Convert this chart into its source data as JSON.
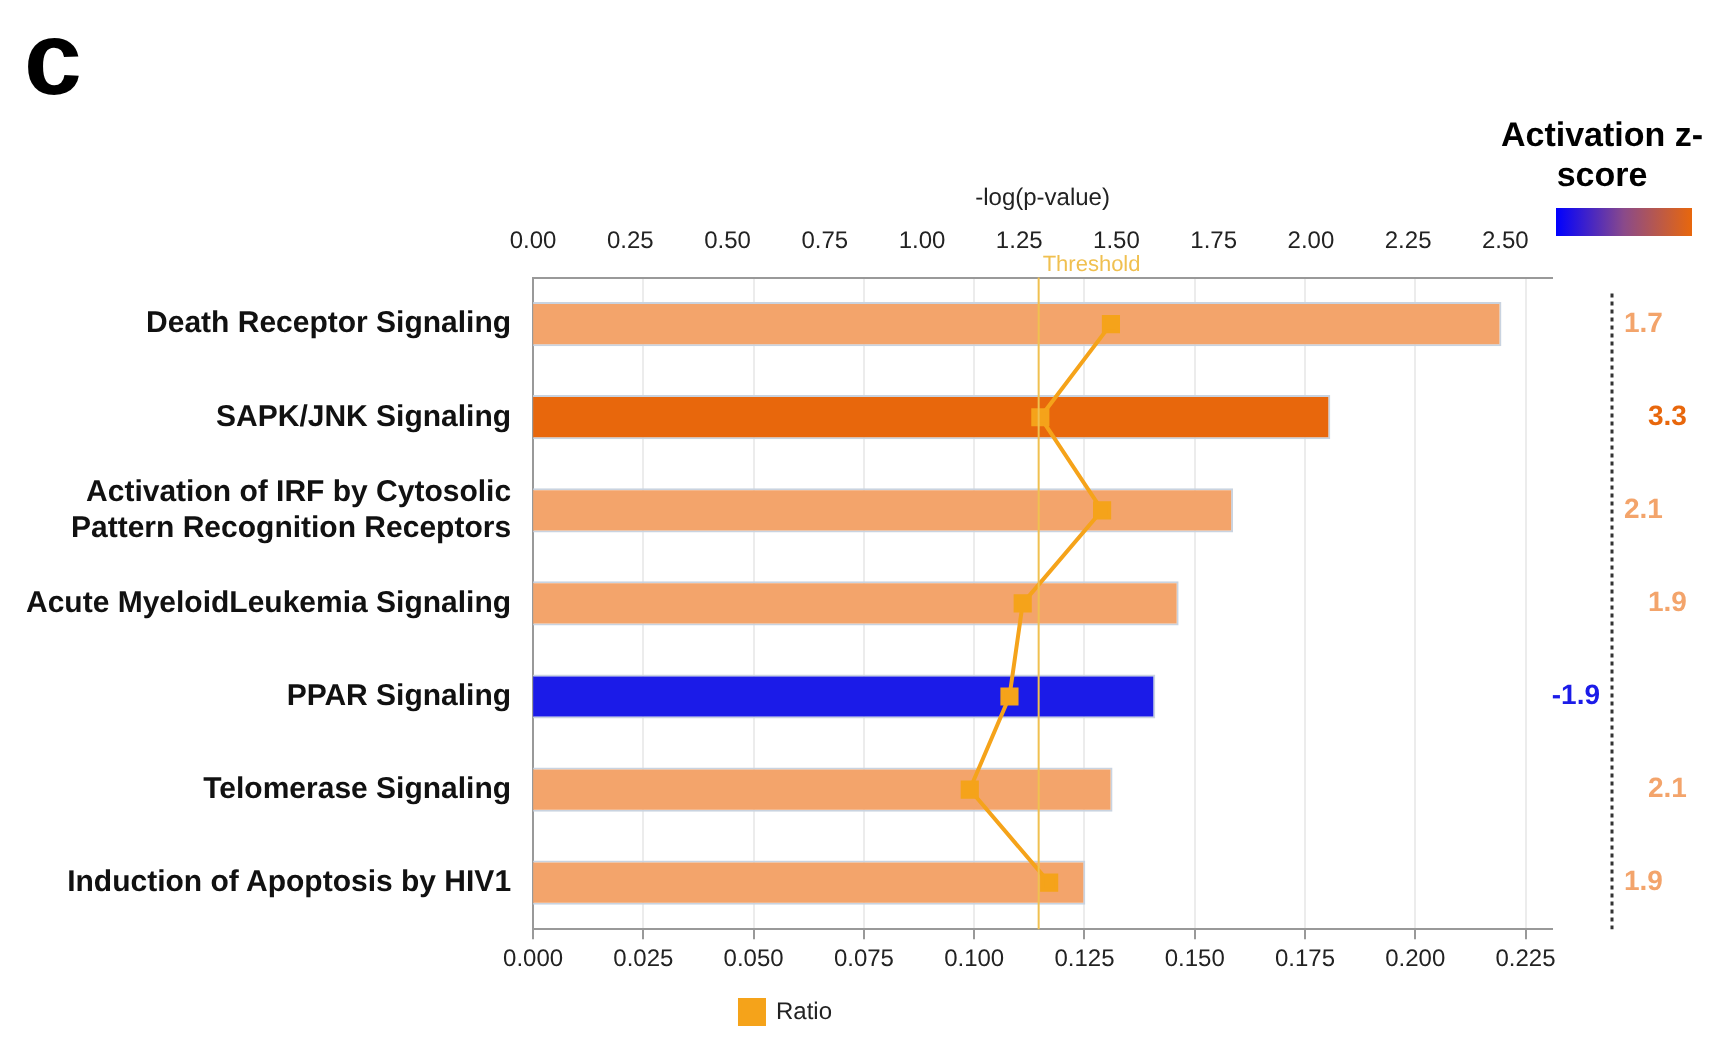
{
  "chart_data": {
    "type": "bar",
    "orientation": "horizontal",
    "categories": [
      "Death Receptor Signaling",
      "SAPK/JNK Signaling",
      "Activation of IRF by Cytosolic Pattern Recognition Receptors",
      "Acute MyeloidLeukemia Signaling",
      "PPAR Signaling",
      "Telomerase Signaling",
      "Induction of Apoptosis by HIV1"
    ],
    "series": [
      {
        "axis": "x2",
        "values": [
          2.49,
          2.05,
          1.8,
          1.66,
          1.6,
          1.49,
          1.42
        ],
        "colors": [
          "#f3a46b",
          "#e8670c",
          "#f3a46b",
          "#f3a46b",
          "#1b1be8",
          "#f3a46b",
          "#f3a46b"
        ]
      },
      {
        "type": "line",
        "name": "Ratio",
        "color": "#f5a31a",
        "values": [
          0.131,
          0.115,
          0.129,
          0.111,
          0.108,
          0.099,
          0.117
        ]
      }
    ],
    "x2label": "-log(p-value)",
    "x2lim": [
      0,
      2.62
    ],
    "x2ticks": [
      {
        "value": 0,
        "label": "0.00"
      },
      0.25,
      {
        "value": 0.5,
        "label": "0.50"
      },
      0.75,
      {
        "value": 1,
        "label": "1.00"
      },
      1.25,
      {
        "value": 1.5,
        "label": "1.50"
      },
      1.75,
      {
        "value": 2,
        "label": "2.00"
      },
      2.25,
      {
        "value": 2.5,
        "label": "2.50"
      }
    ],
    "xlim": [
      0,
      0.231
    ],
    "xticks": [
      {
        "value": 0,
        "label": "0.000"
      },
      0.025,
      {
        "value": 0.05,
        "label": "0.050"
      },
      0.075,
      {
        "value": 0.1,
        "label": "0.100"
      },
      0.125,
      {
        "value": 0.15,
        "label": "0.150"
      },
      0.175,
      {
        "value": 0.2,
        "label": "0.200"
      },
      0.225
    ],
    "ref_lines": [
      {
        "axis": "x2",
        "value": 1.3,
        "label": "Threshold",
        "color": "#f0c050"
      }
    ],
    "legend": "bottom",
    "legend_title": "Activation z-score",
    "marker": "square",
    "grid": "x",
    "annotations": [
      "c",
      "1.7",
      "3.3",
      "2.1",
      "1.9",
      "-1.9",
      "2.1",
      "1.9"
    ]
  }
}
